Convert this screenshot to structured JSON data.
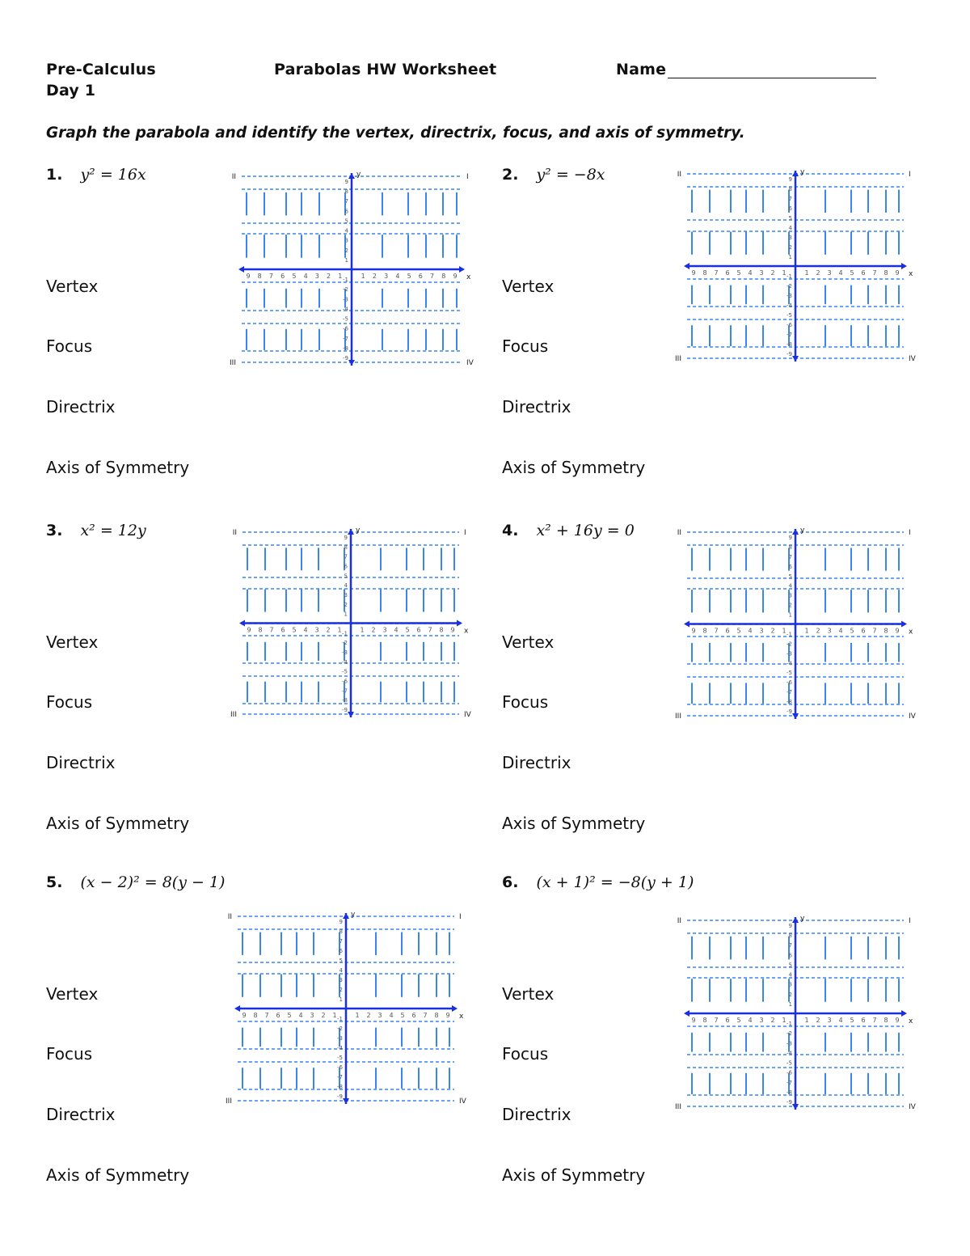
{
  "header": {
    "course": "Pre-Calculus",
    "day": "Day 1",
    "title": "Parabolas HW Worksheet",
    "name_label": "Name"
  },
  "instructions": "Graph the parabola and identify the vertex, directrix, focus, and axis of symmetry.",
  "field_labels": {
    "vertex": "Vertex",
    "focus": "Focus",
    "directrix": "Directrix",
    "axis": "Axis of Symmetry"
  },
  "graph_labels": {
    "q1": "I",
    "q2": "II",
    "q3": "III",
    "q4": "IV",
    "x": "x",
    "y": "y"
  },
  "colors": {
    "grid": "#3a86f0",
    "axis": "#1a2fe0"
  },
  "problems": [
    {
      "number": "1.",
      "equation": "y² = 16x"
    },
    {
      "number": "2.",
      "equation": "y² = −8x"
    },
    {
      "number": "3.",
      "equation": "x² = 12y"
    },
    {
      "number": "4.",
      "equation": "x² + 16y = 0"
    },
    {
      "number": "5.",
      "equation": "(x − 2)² = 8(y − 1)"
    },
    {
      "number": "6.",
      "equation": "(x + 1)² = −8(y + 1)"
    }
  ]
}
